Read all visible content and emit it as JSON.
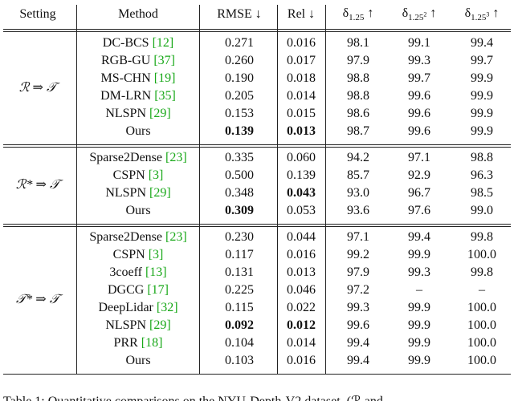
{
  "table": {
    "header": [
      {
        "text": "Setting"
      },
      {
        "text": "Method"
      },
      {
        "text": "RMSE ↓"
      },
      {
        "text": "Rel ↓"
      },
      {
        "symbol": "δ",
        "sub": "1.25",
        "arrow": "↑"
      },
      {
        "symbol": "δ",
        "sub": "1.25",
        "sup": "2",
        "arrow": "↑"
      },
      {
        "symbol": "δ",
        "sub": "1.25",
        "sup": "3",
        "arrow": "↑"
      }
    ],
    "groups": [
      {
        "setting": "ℛ ⇒ 𝒯",
        "rows": [
          {
            "method": "DC-BCS",
            "ref": "[12]",
            "cells": [
              "0.271",
              "0.016",
              "98.1",
              "99.1",
              "99.4"
            ],
            "bold": []
          },
          {
            "method": "RGB-GU",
            "ref": "[37]",
            "cells": [
              "0.260",
              "0.017",
              "97.9",
              "99.3",
              "99.7"
            ],
            "bold": []
          },
          {
            "method": "MS-CHN",
            "ref": "[19]",
            "cells": [
              "0.190",
              "0.018",
              "98.8",
              "99.7",
              "99.9"
            ],
            "bold": []
          },
          {
            "method": "DM-LRN",
            "ref": "[35]",
            "cells": [
              "0.205",
              "0.014",
              "98.8",
              "99.6",
              "99.9"
            ],
            "bold": []
          },
          {
            "method": "NLSPN",
            "ref": "[29]",
            "cells": [
              "0.153",
              "0.015",
              "98.6",
              "99.6",
              "99.9"
            ],
            "bold": []
          },
          {
            "method": "Ours",
            "cells": [
              "0.139",
              "0.013",
              "98.7",
              "99.6",
              "99.9"
            ],
            "bold": [
              0,
              1
            ]
          }
        ]
      },
      {
        "setting": "ℛ* ⇒ 𝒯",
        "rows": [
          {
            "method": "Sparse2Dense",
            "ref": "[23]",
            "cells": [
              "0.335",
              "0.060",
              "94.2",
              "97.1",
              "98.8"
            ],
            "bold": []
          },
          {
            "method": "CSPN",
            "ref": "[3]",
            "cells": [
              "0.500",
              "0.139",
              "85.7",
              "92.9",
              "96.3"
            ],
            "bold": []
          },
          {
            "method": "NLSPN",
            "ref": "[29]",
            "cells": [
              "0.348",
              "0.043",
              "93.0",
              "96.7",
              "98.5"
            ],
            "bold": [
              1
            ]
          },
          {
            "method": "Ours",
            "cells": [
              "0.309",
              "0.053",
              "93.6",
              "97.6",
              "99.0"
            ],
            "bold": [
              0
            ]
          }
        ]
      },
      {
        "setting": "𝒯* ⇒ 𝒯",
        "rows": [
          {
            "method": "Sparse2Dense",
            "ref": "[23]",
            "cells": [
              "0.230",
              "0.044",
              "97.1",
              "99.4",
              "99.8"
            ],
            "bold": []
          },
          {
            "method": "CSPN",
            "ref": "[3]",
            "cells": [
              "0.117",
              "0.016",
              "99.2",
              "99.9",
              "100.0"
            ],
            "bold": []
          },
          {
            "method": "3coeff",
            "ref": "[13]",
            "cells": [
              "0.131",
              "0.013",
              "97.9",
              "99.3",
              "99.8"
            ],
            "bold": []
          },
          {
            "method": "DGCG",
            "ref": "[17]",
            "cells": [
              "0.225",
              "0.046",
              "97.2",
              "–",
              "–"
            ],
            "bold": []
          },
          {
            "method": "DeepLidar",
            "ref": "[32]",
            "cells": [
              "0.115",
              "0.022",
              "99.3",
              "99.9",
              "100.0"
            ],
            "bold": []
          },
          {
            "method": "NLSPN",
            "ref": "[29]",
            "cells": [
              "0.092",
              "0.012",
              "99.6",
              "99.9",
              "100.0"
            ],
            "bold": [
              0,
              1
            ]
          },
          {
            "method": "PRR",
            "ref": "[18]",
            "cells": [
              "0.104",
              "0.014",
              "99.4",
              "99.9",
              "100.0"
            ],
            "bold": []
          },
          {
            "method": "Ours",
            "cells": [
              "0.103",
              "0.016",
              "99.4",
              "99.9",
              "100.0"
            ],
            "bold": []
          }
        ]
      }
    ],
    "caption": "Table 1: Quantitative comparisons on the NYU-Depth-V2 dataset. (ℛ and"
  }
}
